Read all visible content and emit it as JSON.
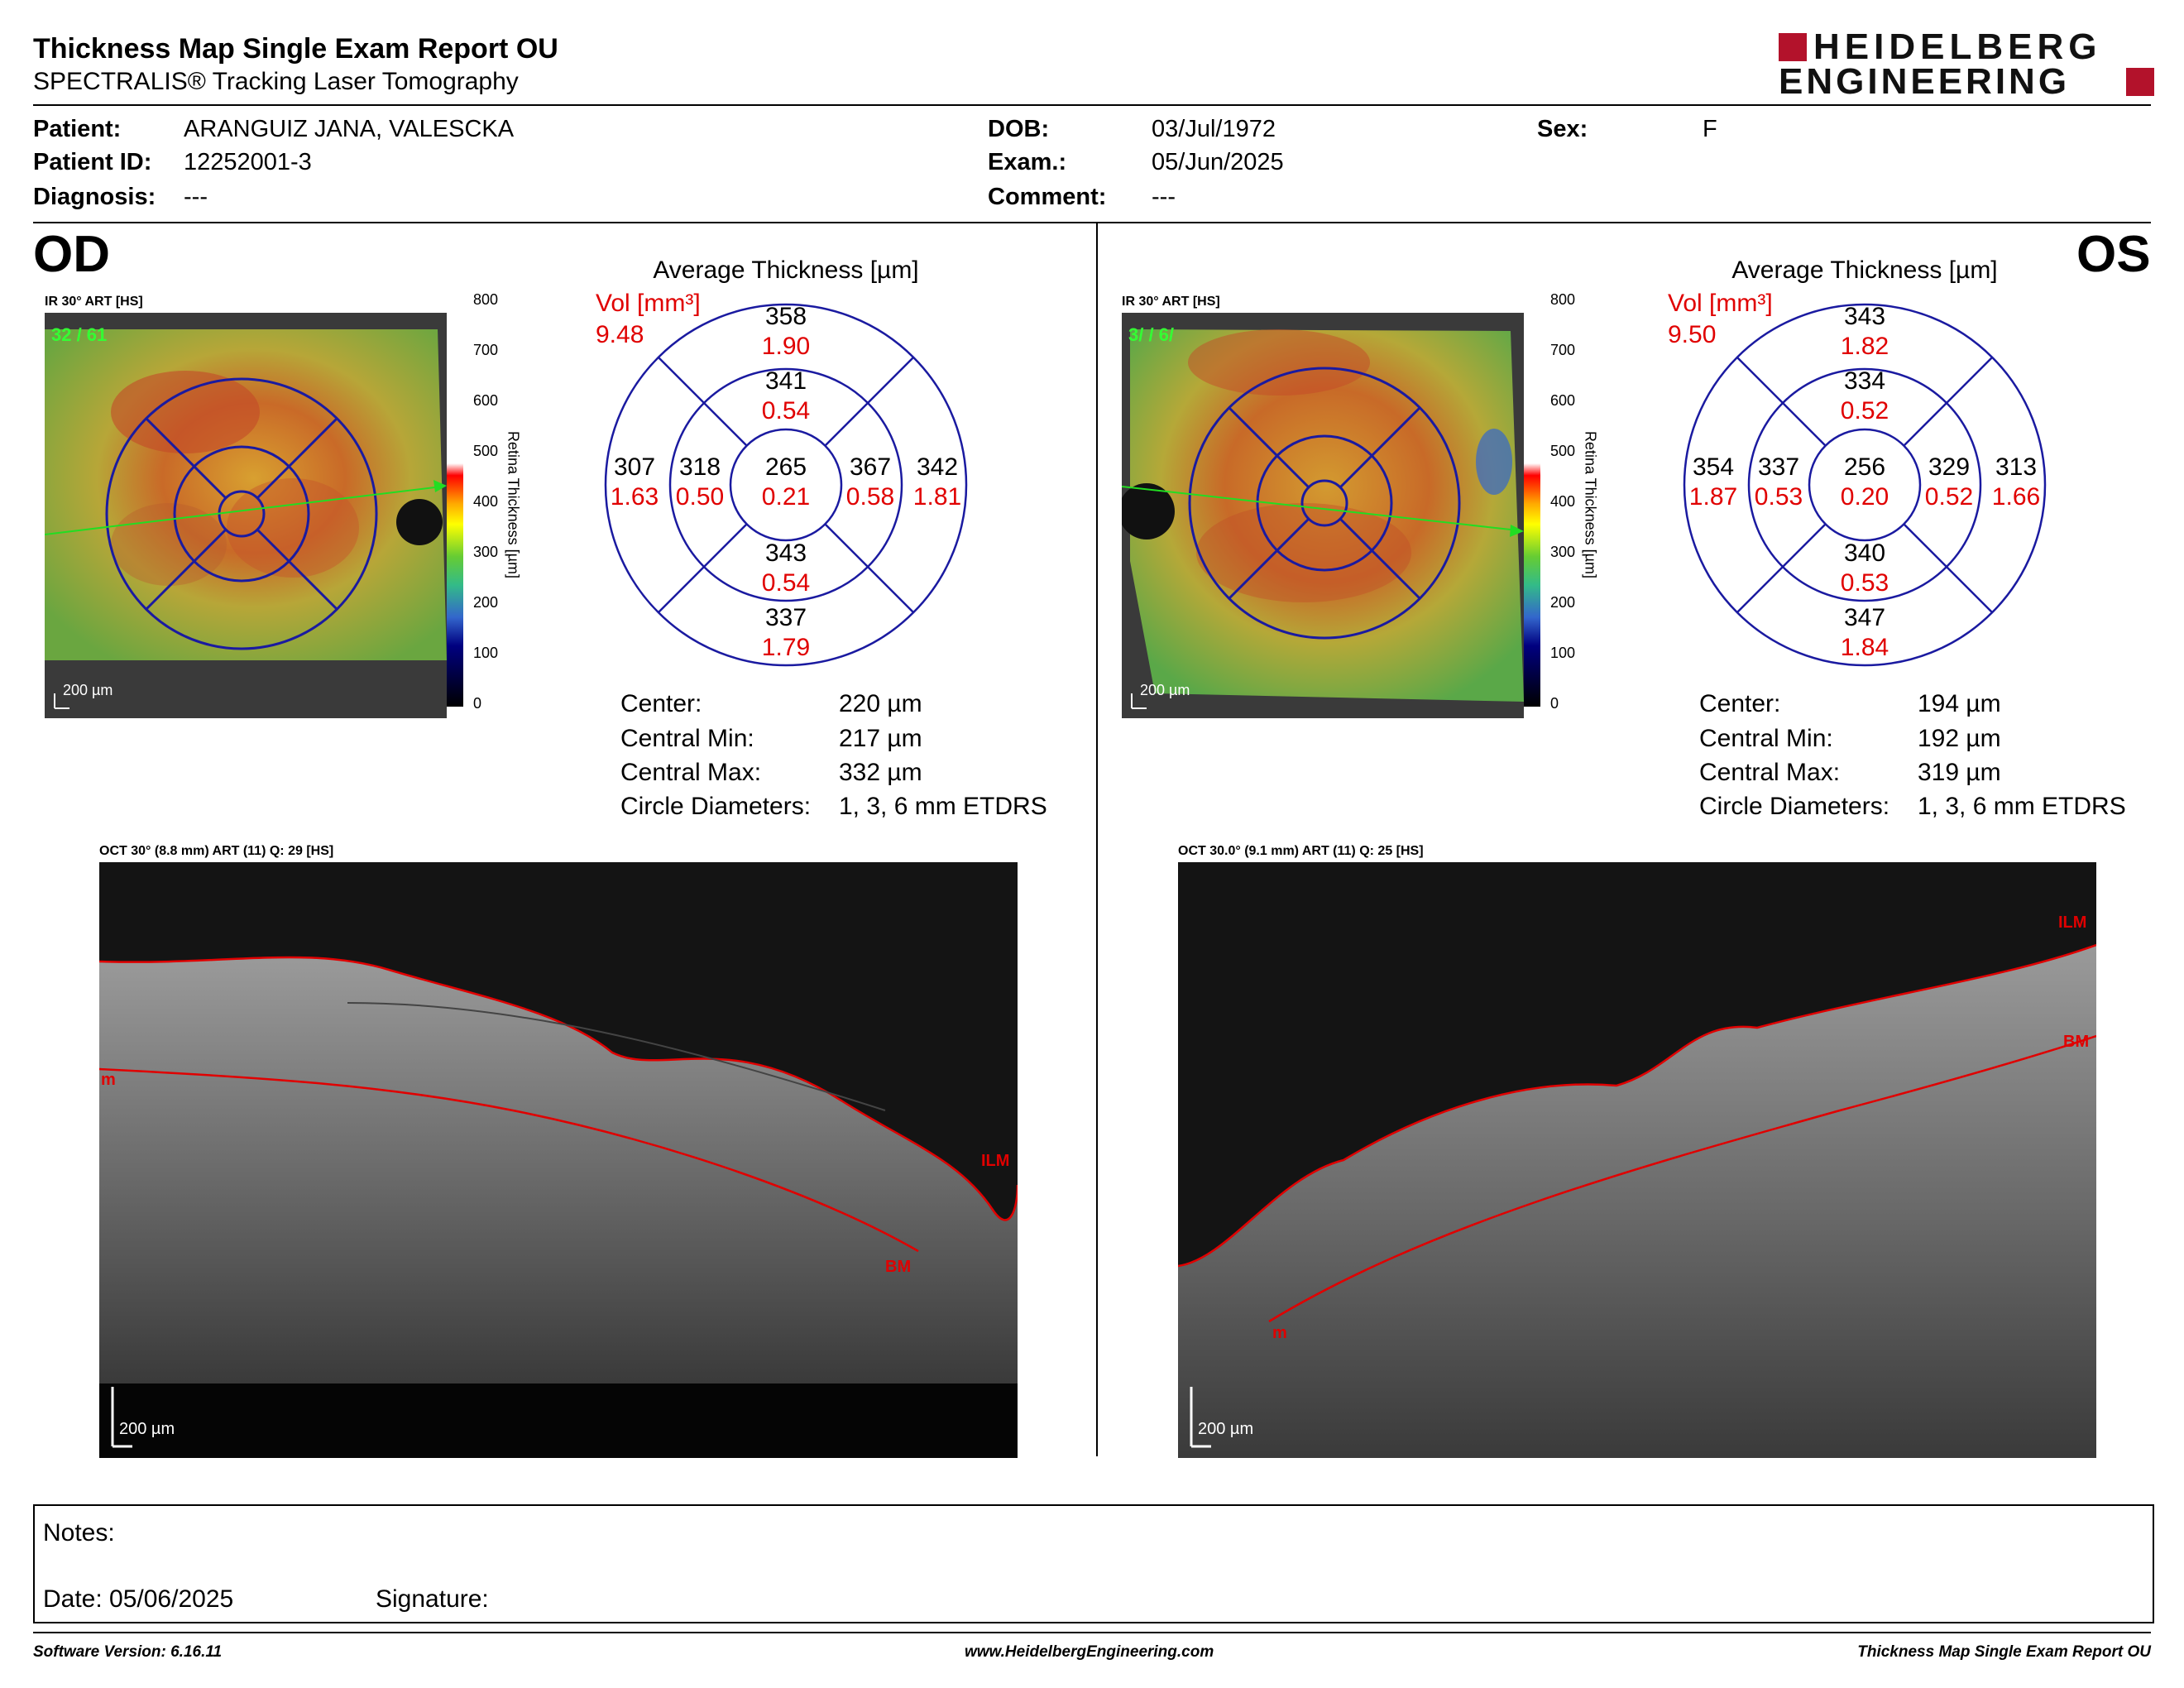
{
  "header": {
    "title": "Thickness Map Single Exam Report OU",
    "subtitle": "SPECTRALIS® Tracking Laser Tomography",
    "logo_line1": "HEIDELBERG",
    "logo_line2": "ENGINEERING"
  },
  "patient": {
    "patient_label": "Patient:",
    "patient_value": "ARANGUIZ JANA, VALESCKA",
    "id_label": "Patient ID:",
    "id_value": "12252001-3",
    "diagnosis_label": "Diagnosis:",
    "diagnosis_value": "---",
    "dob_label": "DOB:",
    "dob_value": "03/Jul/1972",
    "exam_label": "Exam.:",
    "exam_value": "05/Jun/2025",
    "comment_label": "Comment:",
    "comment_value": "---",
    "sex_label": "Sex:",
    "sex_value": "F"
  },
  "od": {
    "eye": "OD",
    "ir_label": "IR 30° ART [HS]",
    "frame_count": "32 / 61",
    "scale": "200 µm",
    "colorbar_ticks": [
      "800",
      "700",
      "600",
      "500",
      "400",
      "300",
      "200",
      "100",
      "0"
    ],
    "colorbar_title": "Retina  Thickness [µm]",
    "avg_title": "Average Thickness [µm]",
    "vol_label": "Vol [mm³]",
    "vol_total": "9.48",
    "grid": {
      "center": [
        "265",
        "0.21"
      ],
      "inner_sup": [
        "341",
        "0.54"
      ],
      "outer_sup": [
        "358",
        "1.90"
      ],
      "inner_inf": [
        "343",
        "0.54"
      ],
      "outer_inf": [
        "337",
        "1.79"
      ],
      "inner_left": [
        "318",
        "0.50"
      ],
      "outer_left": [
        "307",
        "1.63"
      ],
      "inner_right": [
        "367",
        "0.58"
      ],
      "outer_right": [
        "342",
        "1.81"
      ]
    },
    "stats": [
      {
        "label": "Center:",
        "value": "220 µm"
      },
      {
        "label": "Central Min:",
        "value": "217 µm"
      },
      {
        "label": "Central Max:",
        "value": "332 µm"
      },
      {
        "label": "Circle Diameters:",
        "value": "1, 3, 6 mm ETDRS"
      }
    ],
    "oct_label": "OCT 30° (8.8 mm) ART (11) Q: 29 [HS]",
    "oct_labels": {
      "ilm": "ILM",
      "bm": "BM",
      "m": "m"
    },
    "oct_scale": "200 µm"
  },
  "os": {
    "eye": "OS",
    "ir_label": "IR 30° ART [HS]",
    "frame_count": "3/ / 6/",
    "scale": "200 µm",
    "colorbar_ticks": [
      "800",
      "700",
      "600",
      "500",
      "400",
      "300",
      "200",
      "100",
      "0"
    ],
    "colorbar_title": "Retina  Thickness [µm]",
    "avg_title": "Average Thickness [µm]",
    "vol_label": "Vol [mm³]",
    "vol_total": "9.50",
    "grid": {
      "center": [
        "256",
        "0.20"
      ],
      "inner_sup": [
        "334",
        "0.52"
      ],
      "outer_sup": [
        "343",
        "1.82"
      ],
      "inner_inf": [
        "340",
        "0.53"
      ],
      "outer_inf": [
        "347",
        "1.84"
      ],
      "inner_left": [
        "337",
        "0.53"
      ],
      "outer_left": [
        "354",
        "1.87"
      ],
      "inner_right": [
        "329",
        "0.52"
      ],
      "outer_right": [
        "313",
        "1.66"
      ]
    },
    "stats": [
      {
        "label": "Center:",
        "value": "194 µm"
      },
      {
        "label": "Central Min:",
        "value": "192 µm"
      },
      {
        "label": "Central Max:",
        "value": "319 µm"
      },
      {
        "label": "Circle Diameters:",
        "value": "1, 3, 6 mm ETDRS"
      }
    ],
    "oct_label": "OCT 30.0° (9.1 mm) ART (11) Q: 25 [HS]",
    "oct_labels": {
      "ilm": "ILM",
      "bm": "BM",
      "m": "m"
    },
    "oct_scale": "200 µm"
  },
  "notes": {
    "notes_label": "Notes:",
    "date_label": "Date: 05/06/2025",
    "signature_label": "Signature:"
  },
  "footer": {
    "software": "Software Version: 6.16.11",
    "website": "www.HeidelbergEngineering.com",
    "report": "Thickness Map Single Exam Report OU"
  },
  "colors": {
    "value_red": "#e00000",
    "grid_blue": "#1a1aa0",
    "brand_red": "#b3122b"
  }
}
